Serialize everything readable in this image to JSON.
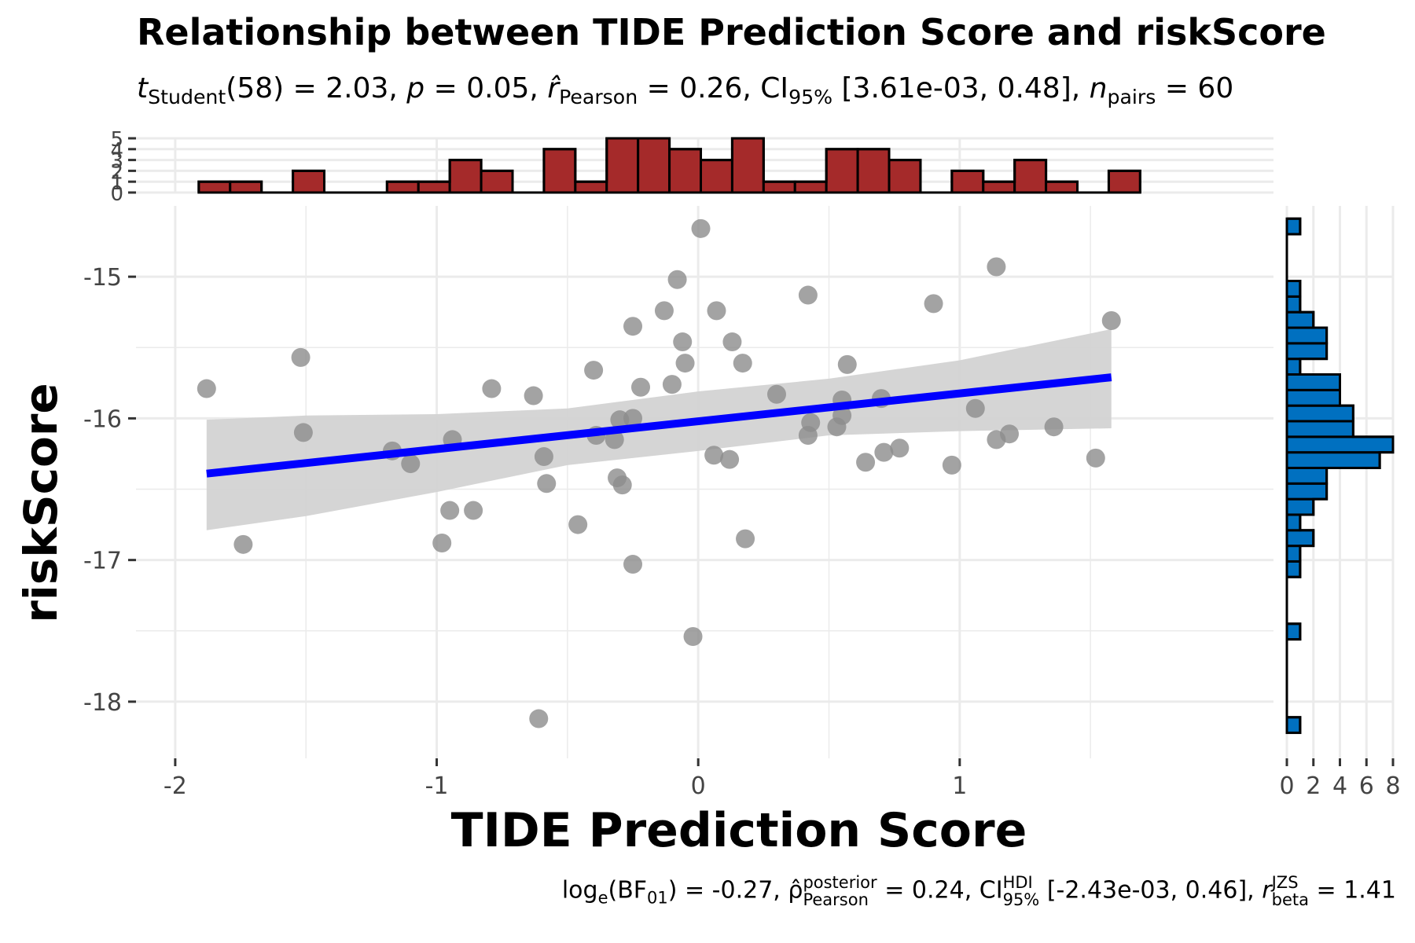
{
  "chart_data": {
    "type": "scatter",
    "title": "Relationship between TIDE Prediction Score and riskScore",
    "subtitle": {
      "t_label": "t",
      "t_sub": "Student",
      "t_text": "(58) = 2.03,",
      "p_label": "p",
      "p_text": "= 0.05,",
      "r_label": "r̂",
      "r_sub": "Pearson",
      "r_text": "= 0.26,",
      "ci_label": "CI",
      "ci_sub": "95%",
      "ci_text": "[3.61e-03, 0.48],",
      "n_label": "n",
      "n_sub": "pairs",
      "n_text": "= 60"
    },
    "caption": {
      "log_label": "log",
      "log_sub": "e",
      "bf_label": "(BF",
      "bf_sub": "01",
      "bf_text": ") = -0.27,",
      "rho_label": "ρ̂",
      "rho_sup": "posterior",
      "rho_sub": "Pearson",
      "rho_text": "= 0.24,",
      "ci_label": "CI",
      "ci_sup": "HDI",
      "ci_sub": "95%",
      "ci_text": "[-2.43e-03, 0.46],",
      "r_label": "r",
      "r_sup": "JZS",
      "r_sub": "beta",
      "r_text": "= 1.41"
    },
    "xlabel": "TIDE Prediction Score",
    "ylabel": "riskScore",
    "xlim": [
      -2.15,
      2.2
    ],
    "ylim": [
      -18.4,
      -14.5
    ],
    "x_ticks": [
      -2,
      -1,
      0,
      1
    ],
    "x_tick_labels": [
      "-2",
      "-1",
      "0",
      "1"
    ],
    "y_ticks": [
      -15,
      -16,
      -17,
      -18
    ],
    "y_tick_labels": [
      "-15",
      "-16",
      "-17",
      "-18"
    ],
    "grid": true,
    "colors": {
      "points": "#8c8c8c",
      "fit_line": "#0000ff",
      "ci_band": "#d3d3d3",
      "top_histogram": "#a52a2a",
      "side_histogram": "#0070c0",
      "grid": "#ebebeb"
    },
    "points": [
      {
        "x": -1.88,
        "y": -15.79
      },
      {
        "x": -1.74,
        "y": -16.89
      },
      {
        "x": -1.52,
        "y": -15.57
      },
      {
        "x": -1.51,
        "y": -16.1
      },
      {
        "x": -1.17,
        "y": -16.23
      },
      {
        "x": -1.1,
        "y": -16.32
      },
      {
        "x": -0.98,
        "y": -16.88
      },
      {
        "x": -0.95,
        "y": -16.65
      },
      {
        "x": -0.94,
        "y": -16.15
      },
      {
        "x": -0.86,
        "y": -16.65
      },
      {
        "x": -0.79,
        "y": -15.79
      },
      {
        "x": -0.63,
        "y": -15.84
      },
      {
        "x": -0.61,
        "y": -18.12
      },
      {
        "x": -0.59,
        "y": -16.27
      },
      {
        "x": -0.58,
        "y": -16.46
      },
      {
        "x": -0.46,
        "y": -16.75
      },
      {
        "x": -0.4,
        "y": -15.66
      },
      {
        "x": -0.39,
        "y": -16.12
      },
      {
        "x": -0.32,
        "y": -16.15
      },
      {
        "x": -0.31,
        "y": -16.42
      },
      {
        "x": -0.3,
        "y": -16.01
      },
      {
        "x": -0.29,
        "y": -16.47
      },
      {
        "x": -0.25,
        "y": -15.35
      },
      {
        "x": -0.25,
        "y": -16.0
      },
      {
        "x": -0.25,
        "y": -17.03
      },
      {
        "x": -0.22,
        "y": -15.78
      },
      {
        "x": -0.13,
        "y": -15.24
      },
      {
        "x": -0.1,
        "y": -15.76
      },
      {
        "x": -0.08,
        "y": -15.02
      },
      {
        "x": -0.06,
        "y": -15.46
      },
      {
        "x": -0.05,
        "y": -15.61
      },
      {
        "x": -0.02,
        "y": -17.54
      },
      {
        "x": 0.01,
        "y": -14.66
      },
      {
        "x": 0.06,
        "y": -16.26
      },
      {
        "x": 0.07,
        "y": -15.24
      },
      {
        "x": 0.12,
        "y": -16.29
      },
      {
        "x": 0.13,
        "y": -15.46
      },
      {
        "x": 0.17,
        "y": -15.61
      },
      {
        "x": 0.18,
        "y": -16.85
      },
      {
        "x": 0.3,
        "y": -15.83
      },
      {
        "x": 0.42,
        "y": -15.13
      },
      {
        "x": 0.42,
        "y": -16.12
      },
      {
        "x": 0.43,
        "y": -16.03
      },
      {
        "x": 0.53,
        "y": -16.06
      },
      {
        "x": 0.55,
        "y": -15.87
      },
      {
        "x": 0.55,
        "y": -15.98
      },
      {
        "x": 0.57,
        "y": -15.62
      },
      {
        "x": 0.64,
        "y": -16.31
      },
      {
        "x": 0.7,
        "y": -15.86
      },
      {
        "x": 0.71,
        "y": -16.24
      },
      {
        "x": 0.77,
        "y": -16.21
      },
      {
        "x": 0.9,
        "y": -15.19
      },
      {
        "x": 0.97,
        "y": -16.33
      },
      {
        "x": 1.06,
        "y": -15.93
      },
      {
        "x": 1.14,
        "y": -14.93
      },
      {
        "x": 1.14,
        "y": -16.15
      },
      {
        "x": 1.19,
        "y": -16.11
      },
      {
        "x": 1.36,
        "y": -16.06
      },
      {
        "x": 1.52,
        "y": -16.28
      },
      {
        "x": 1.58,
        "y": -15.31
      }
    ],
    "fit_line": {
      "x": [
        -1.88,
        1.58
      ],
      "y": [
        -16.39,
        -15.71
      ]
    },
    "ci_band": {
      "x": [
        -1.88,
        -1.5,
        -1.0,
        -0.5,
        0.0,
        0.5,
        1.0,
        1.58
      ],
      "upper": [
        -16.01,
        -15.98,
        -15.97,
        -15.93,
        -15.81,
        -15.72,
        -15.59,
        -15.37
      ],
      "lower": [
        -16.79,
        -16.69,
        -16.52,
        -16.33,
        -16.23,
        -16.12,
        -16.09,
        -16.07
      ]
    },
    "top_histogram": {
      "bins": [
        -1.91,
        -1.79,
        -1.67,
        -1.55,
        -1.43,
        -1.31,
        -1.19,
        -1.07,
        -0.95,
        -0.83,
        -0.71,
        -0.59,
        -0.47,
        -0.35,
        -0.23,
        -0.11,
        0.01,
        0.13,
        0.25,
        0.37,
        0.49,
        0.61,
        0.73,
        0.85,
        0.97,
        1.09,
        1.21,
        1.33,
        1.45,
        1.57,
        1.69
      ],
      "counts": [
        1,
        1,
        0,
        2,
        0,
        0,
        1,
        1,
        3,
        2,
        0,
        4,
        1,
        5,
        5,
        4,
        3,
        5,
        1,
        1,
        4,
        4,
        3,
        0,
        2,
        1,
        3,
        1,
        0,
        2
      ],
      "y_ticks": [
        0,
        1,
        2,
        3,
        4,
        5
      ],
      "y_tick_labels": [
        "0",
        "1",
        "2",
        "3",
        "4",
        "5"
      ],
      "ylim": [
        0,
        5
      ]
    },
    "side_histogram": {
      "bins": [
        -18.22,
        -18.11,
        -18.0,
        -17.89,
        -17.78,
        -17.67,
        -17.56,
        -17.45,
        -17.34,
        -17.23,
        -17.12,
        -17.01,
        -16.9,
        -16.79,
        -16.68,
        -16.57,
        -16.46,
        -16.35,
        -16.24,
        -16.13,
        -16.02,
        -15.91,
        -15.8,
        -15.69,
        -15.58,
        -15.47,
        -15.36,
        -15.25,
        -15.14,
        -15.03,
        -14.92,
        -14.81,
        -14.7,
        -14.59
      ],
      "counts": [
        1,
        0,
        0,
        0,
        0,
        0,
        1,
        0,
        0,
        0,
        1,
        1,
        2,
        1,
        2,
        3,
        3,
        7,
        8,
        5,
        5,
        4,
        4,
        1,
        3,
        3,
        2,
        1,
        1,
        0,
        0,
        0,
        1
      ],
      "x_ticks": [
        0,
        2,
        4,
        6,
        8
      ],
      "x_tick_labels": [
        "0",
        "2",
        "4",
        "6",
        "8"
      ],
      "xlim": [
        0,
        8
      ]
    }
  }
}
